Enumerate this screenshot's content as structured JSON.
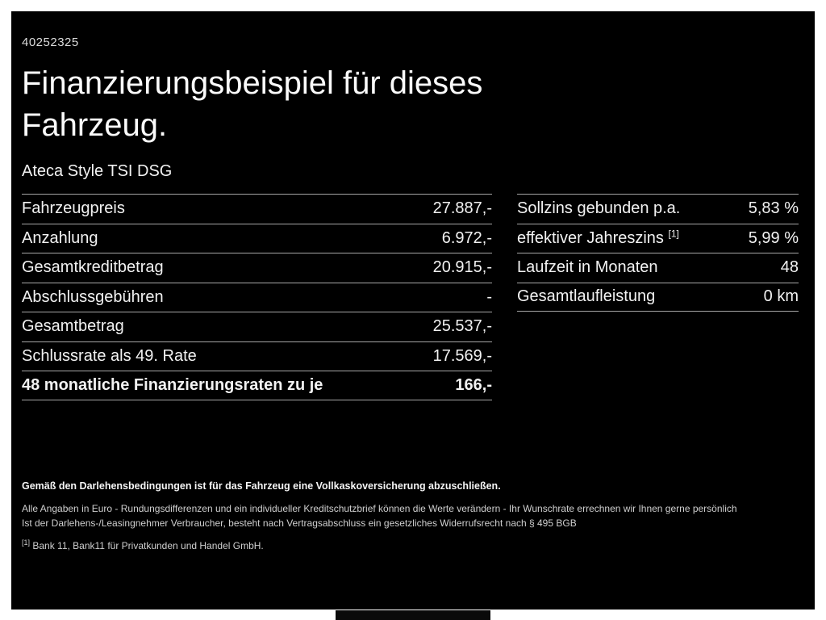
{
  "page": {
    "doc_id": "40252325",
    "title_line1": "Finanzierungsbeispiel für dieses",
    "title_line2": "Fahrzeug.",
    "subtitle": "Ateca Style TSI DSG"
  },
  "left_table": {
    "rows": [
      {
        "label": "Fahrzeugpreis",
        "value": "27.887,-"
      },
      {
        "label": "Anzahlung",
        "value": "6.972,-"
      },
      {
        "label": "Gesamtkreditbetrag",
        "value": "20.915,-"
      },
      {
        "label": "Abschlussgebühren",
        "value": "-"
      },
      {
        "label": "Gesamtbetrag",
        "value": "25.537,-"
      },
      {
        "label": "Schlussrate als 49. Rate",
        "value": "17.569,-"
      },
      {
        "label": "48 monatliche Finanzierungsraten zu je",
        "value": "166,-"
      }
    ]
  },
  "right_table": {
    "rows": [
      {
        "label": "Sollzins gebunden p.a.",
        "value": "5,83 %"
      },
      {
        "label": "effektiver Jahreszins",
        "sup": "[1]",
        "value": "5,99 %"
      },
      {
        "label": "Laufzeit in Monaten",
        "value": "48"
      },
      {
        "label": "Gesamtlaufleistung",
        "value": "0 km"
      }
    ]
  },
  "footer": {
    "line_bold": "Gemäß den Darlehensbedingungen ist für das Fahrzeug eine Vollkaskoversicherung abzuschließen.",
    "line2": "Alle Angaben in Euro - Rundungsdifferenzen und ein individueller Kreditschutzbrief können die Werte verändern - Ihr Wunschrate errechnen wir Ihnen gerne persönlich",
    "line3": "Ist der Darlehens-/Leasingnehmer Verbraucher, besteht nach Vertragsabschluss ein gesetzliches Widerrufsrecht nach § 495 BGB",
    "footnote_marker": "[1]",
    "footnote_text": "Bank 11, Bank11 für Privatkunden und Handel GmbH."
  },
  "colors": {
    "background": "#000000",
    "frame_border": "#ffffff",
    "text": "#f2f2f2",
    "divider": "#a6a6a6"
  }
}
